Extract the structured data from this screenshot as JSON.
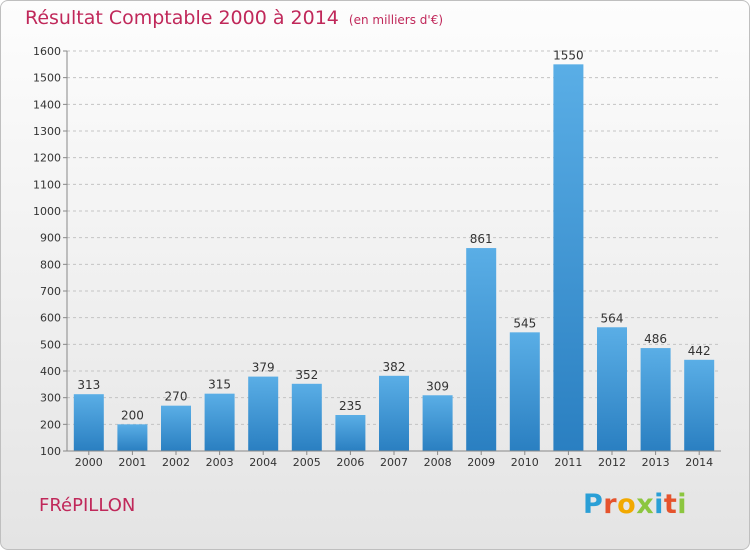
{
  "title": "Résultat Comptable 2000 à 2014",
  "subtitle": "(en milliers d'€)",
  "location": "FRéPILLON",
  "logo": {
    "text": "Proxiti",
    "letters": [
      {
        "ch": "P",
        "color": "#2a9fd6"
      },
      {
        "ch": "r",
        "color": "#e5532d"
      },
      {
        "ch": "o",
        "color": "#f2a900"
      },
      {
        "ch": "x",
        "color": "#8cc63f"
      },
      {
        "ch": "i",
        "color": "#2a9fd6"
      },
      {
        "ch": "t",
        "color": "#e5532d"
      },
      {
        "ch": "i",
        "color": "#8cc63f"
      }
    ]
  },
  "chart_data": {
    "type": "bar",
    "title": "Résultat Comptable 2000 à 2014",
    "subtitle": "(en milliers d'€)",
    "xlabel": "",
    "ylabel": "",
    "categories": [
      "2000",
      "2001",
      "2002",
      "2003",
      "2004",
      "2005",
      "2006",
      "2007",
      "2008",
      "2009",
      "2010",
      "2011",
      "2012",
      "2013",
      "2014"
    ],
    "values": [
      313,
      200,
      270,
      315,
      379,
      352,
      235,
      382,
      309,
      861,
      545,
      1550,
      564,
      486,
      442
    ],
    "ylim": [
      100,
      1600
    ],
    "yticks": [
      100,
      200,
      300,
      400,
      500,
      600,
      700,
      800,
      900,
      1000,
      1100,
      1200,
      1300,
      1400,
      1500,
      1600
    ],
    "grid": true,
    "legend": "none",
    "colors": {
      "bar_top": "#5aaee6",
      "bar_bottom": "#2a7fc1",
      "grid": "#c4c4c4",
      "title": "#c0285a"
    }
  }
}
